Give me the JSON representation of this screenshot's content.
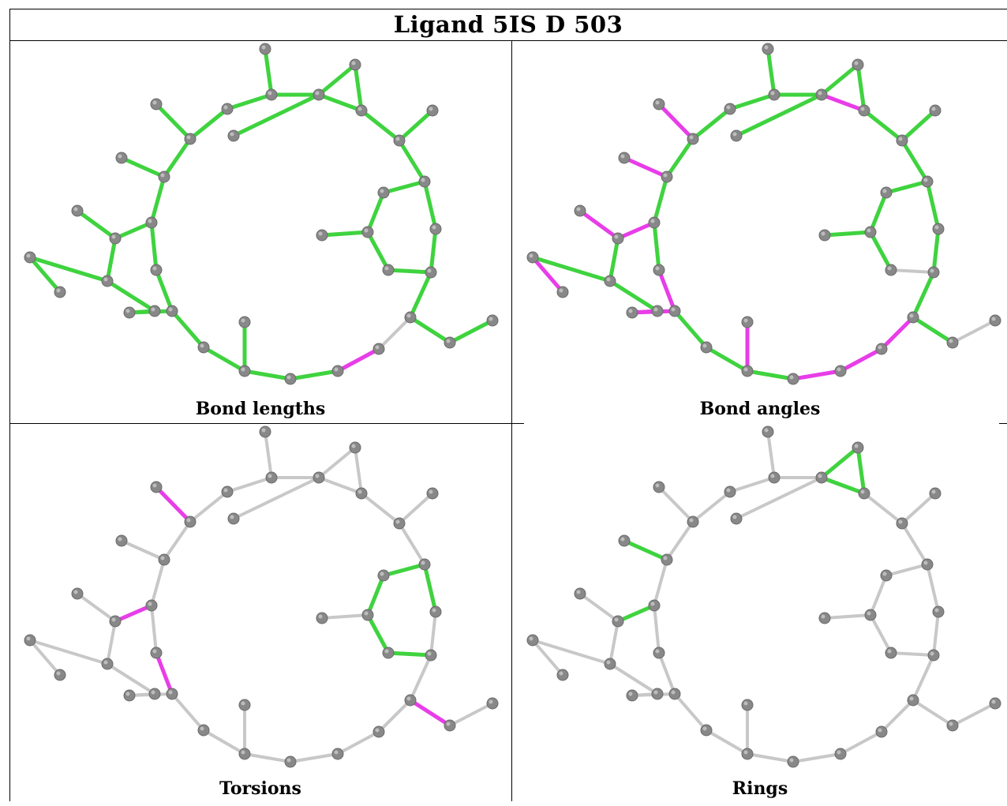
{
  "title": "Ligand 5IS D 503",
  "colors": {
    "atom": "#888888",
    "bond_ok": "#3fd33f",
    "bond_outlier": "#e83de8",
    "bond_neutral": "#c8c8c8"
  },
  "panels": [
    {
      "caption": "Bond lengths",
      "magenta": [
        [
          2,
          4
        ],
        [
          4,
          5
        ],
        [
          7,
          8
        ],
        [
          24,
          25
        ],
        [
          22,
          24
        ]
      ],
      "gray": [
        [
          25,
          26
        ]
      ]
    },
    {
      "caption": "Bond angles",
      "magenta": [
        [
          1,
          2
        ],
        [
          2,
          4
        ],
        [
          4,
          5
        ],
        [
          1,
          3
        ],
        [
          8,
          9
        ],
        [
          9,
          10
        ],
        [
          10,
          11
        ],
        [
          7,
          8
        ],
        [
          7,
          10
        ],
        [
          6,
          7
        ],
        [
          11,
          12
        ],
        [
          12,
          13
        ],
        [
          7,
          12
        ],
        [
          14,
          15
        ],
        [
          15,
          16
        ],
        [
          16,
          17
        ],
        [
          17,
          18
        ],
        [
          18,
          19
        ],
        [
          19,
          22
        ],
        [
          22,
          21
        ],
        [
          22,
          20
        ],
        [
          23,
          24
        ],
        [
          24,
          25
        ],
        [
          25,
          26
        ]
      ],
      "gray": [
        [
          29,
          30
        ],
        [
          22,
          24
        ],
        [
          27,
          28
        ]
      ]
    },
    {
      "caption": "Torsions",
      "magenta": [
        [
          6,
          7
        ],
        [
          10,
          11
        ],
        [
          0,
          3
        ],
        [
          18,
          19
        ],
        [
          26,
          27
        ],
        [
          26,
          28
        ]
      ],
      "green": [
        [
          3,
          6
        ],
        [
          6,
          12
        ],
        [
          12,
          15
        ],
        [
          15,
          16
        ],
        [
          32,
          33
        ],
        [
          33,
          34
        ],
        [
          34,
          35
        ],
        [
          29,
          30
        ],
        [
          31,
          30
        ],
        [
          30,
          32
        ],
        [
          27,
          29
        ]
      ],
      "default": "gray"
    },
    {
      "caption": "Rings",
      "green": [
        [
          0,
          1
        ],
        [
          1,
          2
        ],
        [
          2,
          4
        ],
        [
          0,
          4
        ],
        [
          0,
          2
        ],
        [
          7,
          8
        ],
        [
          8,
          9
        ],
        [
          9,
          10
        ],
        [
          10,
          11
        ],
        [
          11,
          7
        ],
        [
          7,
          12
        ]
      ],
      "default": "gray"
    }
  ]
}
